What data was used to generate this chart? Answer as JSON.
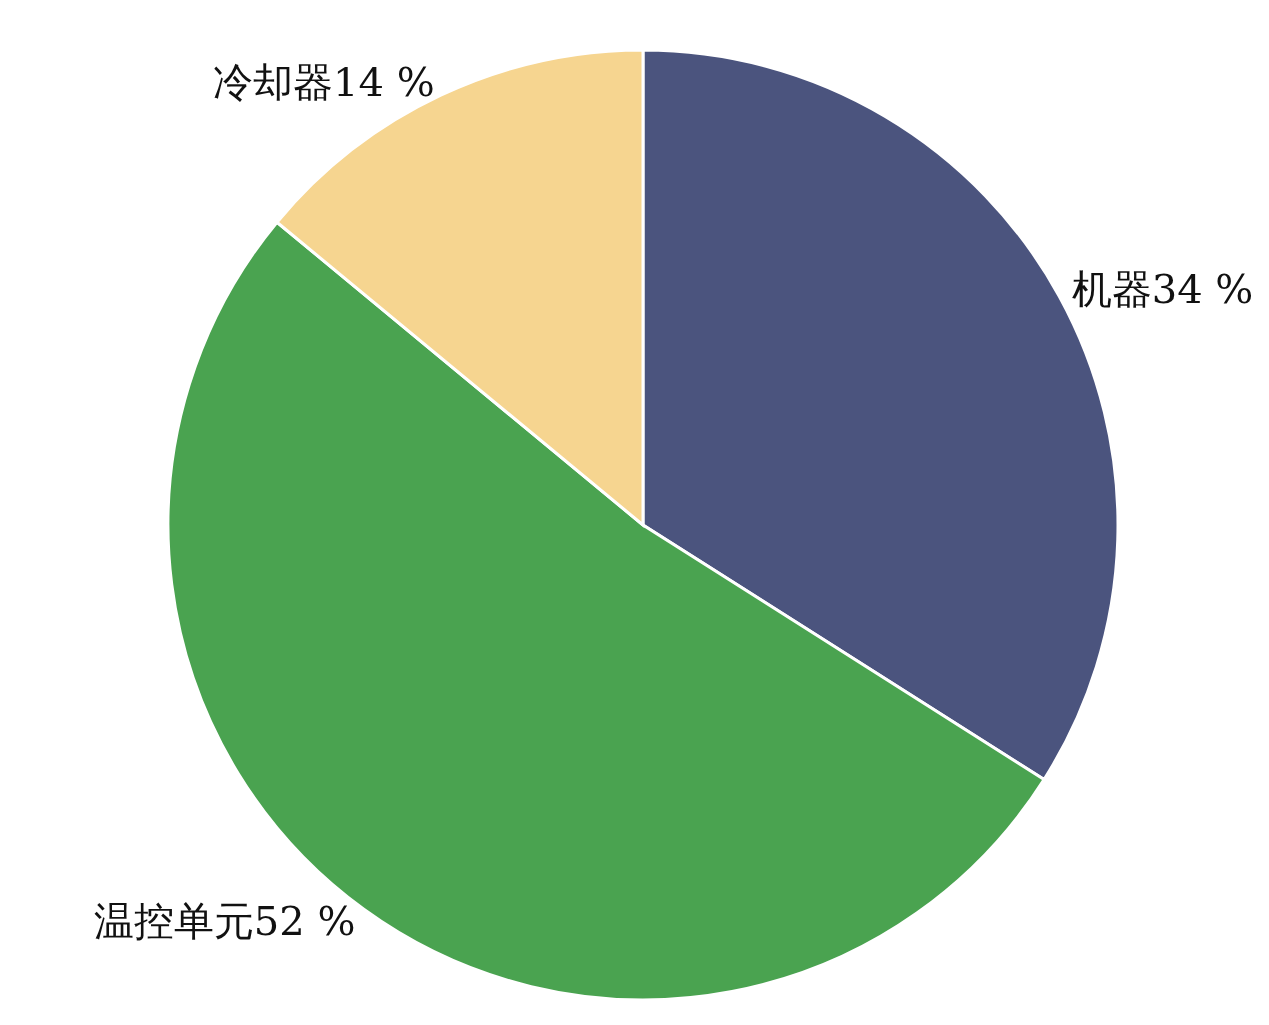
{
  "chart_data": {
    "type": "pie",
    "categories": [
      "机器",
      "温控单元",
      "冷却器"
    ],
    "values": [
      34,
      52,
      14
    ],
    "value_labels": [
      "34 %",
      "52 %",
      "14 %"
    ],
    "colors": [
      "#4b547e",
      "#4aa350",
      "#f6d590"
    ]
  }
}
